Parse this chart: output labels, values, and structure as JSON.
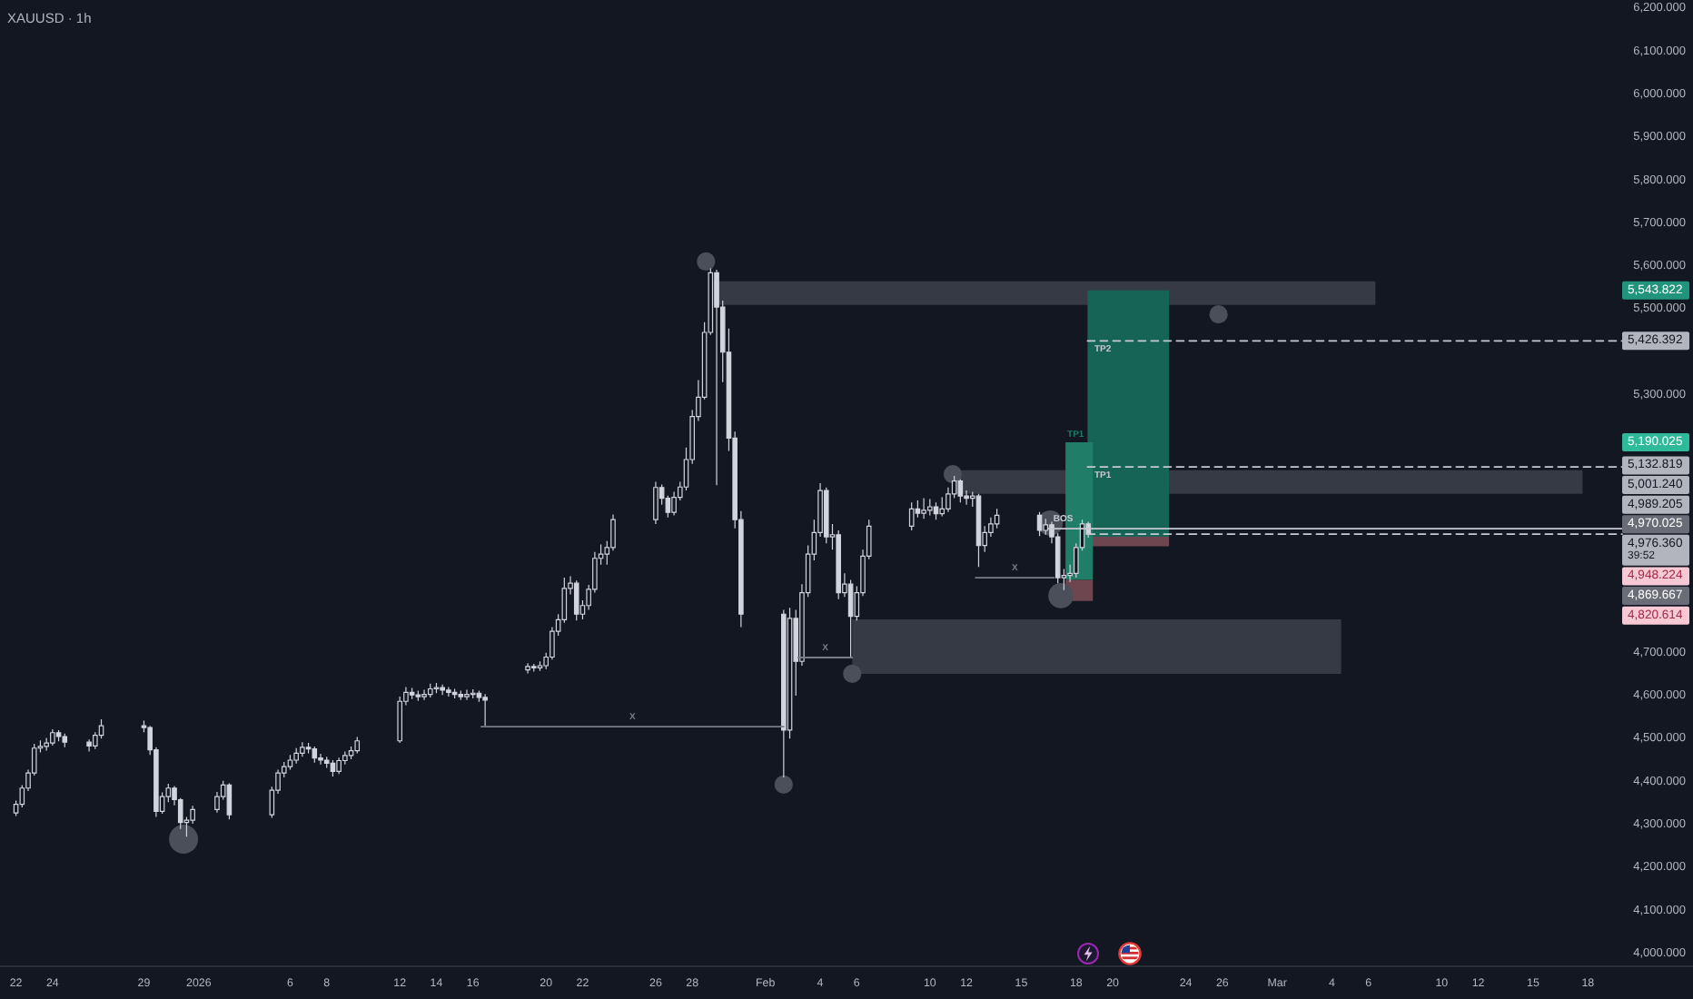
{
  "chart_data": {
    "type": "candlestick",
    "title": "XAUUSD · 1h",
    "xlim": [
      "2025-12-21T03:00",
      "2026-03-23T18:00"
    ],
    "ylim": [
      3970,
      6220
    ],
    "xticks": [
      {
        "value": "2025-12-22",
        "label": "22"
      },
      {
        "value": "2025-12-24",
        "label": "24"
      },
      {
        "value": "2025-12-29",
        "label": "29"
      },
      {
        "value": "2026",
        "label": "2026"
      },
      {
        "value": "2026-01-06",
        "label": "6"
      },
      {
        "value": "2026-01-08",
        "label": "8"
      },
      {
        "value": "2026-01-12",
        "label": "12"
      },
      {
        "value": "2026-01-14",
        "label": "14"
      },
      {
        "value": "2026-01-16",
        "label": "16"
      },
      {
        "value": "2026-01-20",
        "label": "20"
      },
      {
        "value": "2026-01-22",
        "label": "22"
      },
      {
        "value": "2026-01-26",
        "label": "26"
      },
      {
        "value": "2026-01-28",
        "label": "28"
      },
      {
        "value": "2026-02",
        "label": "Feb"
      },
      {
        "value": "2026-02-04",
        "label": "4"
      },
      {
        "value": "2026-02-06",
        "label": "6"
      },
      {
        "value": "2026-02-10",
        "label": "10"
      },
      {
        "value": "2026-02-12",
        "label": "12"
      },
      {
        "value": "2026-02-15",
        "label": "15"
      },
      {
        "value": "2026-02-18",
        "label": "18"
      },
      {
        "value": "2026-02-20",
        "label": "20"
      },
      {
        "value": "2026-02-24",
        "label": "24"
      },
      {
        "value": "2026-02-26",
        "label": "26"
      },
      {
        "value": "2026-03",
        "label": "Mar"
      },
      {
        "value": "2026-03-04",
        "label": "4"
      },
      {
        "value": "2026-03-06",
        "label": "6"
      },
      {
        "value": "2026-03-10",
        "label": "10"
      },
      {
        "value": "2026-03-12",
        "label": "12"
      },
      {
        "value": "2026-03-15",
        "label": "15"
      },
      {
        "value": "2026-03-18",
        "label": "18"
      }
    ],
    "yticks": [
      {
        "value": 4000,
        "label": "4,000.000"
      },
      {
        "value": 4100,
        "label": "4,100.000"
      },
      {
        "value": 4200,
        "label": "4,200.000"
      },
      {
        "value": 4300,
        "label": "4,300.000"
      },
      {
        "value": 4400,
        "label": "4,400.000"
      },
      {
        "value": 4500,
        "label": "4,500.000"
      },
      {
        "value": 4600,
        "label": "4,600.000"
      },
      {
        "value": 4700,
        "label": "4,700.000"
      },
      {
        "value": 5300,
        "label": "5,300.000"
      },
      {
        "value": 5500,
        "label": "5,500.000"
      },
      {
        "value": 5600,
        "label": "5,600.000"
      },
      {
        "value": 5700,
        "label": "5,700.000"
      },
      {
        "value": 5800,
        "label": "5,800.000"
      },
      {
        "value": 5900,
        "label": "5,900.000"
      },
      {
        "value": 6000,
        "label": "6,000.000"
      },
      {
        "value": 6100,
        "label": "6,100.000"
      },
      {
        "value": 6200,
        "label": "6,200.000"
      }
    ],
    "series": [
      {
        "type": "area",
        "color": "#363a45",
        "x": [
          "2026-01-29T04:00",
          "2026-03-06T09:00"
        ],
        "values": [
          null,
          null
        ],
        "lower": [
          5510,
          5510
        ],
        "upper": [
          5565,
          5565
        ]
      },
      {
        "type": "area",
        "color": "#363a45",
        "x": [
          "2026-02-11T06:00",
          "2026-03-17T17:00"
        ],
        "values": [
          null,
          null
        ],
        "lower": [
          5070,
          5070
        ],
        "upper": [
          5125,
          5125
        ]
      },
      {
        "type": "area",
        "color": "#363a45",
        "x": [
          "2026-02-05T18:00",
          "2026-03-04T12:00"
        ],
        "values": [
          null,
          null
        ],
        "lower": [
          4651,
          4651
        ],
        "upper": [
          4778,
          4778
        ]
      },
      {
        "type": "area",
        "color": "#166455",
        "x": [
          "2026-02-18T15:00",
          "2026-02-23T02:00"
        ],
        "values": [
          null,
          null
        ],
        "lower": [
          4970.025,
          4970.025
        ],
        "upper": [
          5543.822,
          5543.822
        ]
      },
      {
        "type": "area",
        "color": "#6e4650",
        "x": [
          "2026-02-18T15:00",
          "2026-02-23T02:00"
        ],
        "values": [
          null,
          null
        ],
        "lower": [
          4948.224,
          4948.224
        ],
        "upper": [
          4970.025,
          4970.025
        ]
      },
      {
        "type": "area",
        "name": "TP1",
        "color": "#1f7d68",
        "x": [
          "2026-02-17T10:00",
          "2026-02-18T22:00"
        ],
        "values": [
          null,
          null
        ],
        "lower": [
          4869.667,
          4869.667
        ],
        "upper": [
          5190.025,
          5190.025
        ]
      },
      {
        "type": "area",
        "color": "#6e4650",
        "x": [
          "2026-02-17T10:00",
          "2026-02-18T22:00"
        ],
        "values": [
          null,
          null
        ],
        "lower": [
          4820.614,
          4820.614
        ],
        "upper": [
          4869.667,
          4869.667
        ]
      },
      {
        "type": "bubble",
        "color": "#4b4f5a",
        "x": [
          "2025-12-31T04:00",
          "2026-01-28T18:00",
          "2026-02-02T00:00",
          "2026-02-05T18:00",
          "2026-02-11T06:00",
          "2026-02-16T14:00",
          "2026-02-17T04:00",
          "2026-02-25T19:00"
        ],
        "values": [
          4266,
          5611,
          4393,
          4651,
          5116,
          5002,
          4833,
          5488
        ],
        "sizes": [
          1,
          0.4,
          0.4,
          0.4,
          0.4,
          0.75,
          0.75,
          0.4
        ]
      },
      {
        "color": "#d1d4dc",
        "x": [
          "2025-12-22T00:00",
          "2025-12-22T08:00",
          "2025-12-22T16:00",
          "2025-12-23T00:00",
          "2025-12-23T08:00",
          "2025-12-23T16:00",
          "2025-12-24T00:00",
          "2025-12-24T08:00",
          "2025-12-24T16:00",
          "2025-12-26T00:00",
          "2025-12-26T08:00",
          "2025-12-26T16:00",
          "2025-12-29T00:00",
          "2025-12-29T08:00",
          "2025-12-29T16:00",
          "2025-12-30T00:00",
          "2025-12-30T08:00",
          "2025-12-30T16:00",
          "2025-12-31T00:00",
          "2025-12-31T08:00",
          "2025-12-31T16:00",
          "2026-01-02T00:00",
          "2026-01-02T08:00",
          "2026-01-02T16:00",
          "2026-01-05T00:00",
          "2026-01-05T08:00",
          "2026-01-05T16:00",
          "2026-01-06T00:00",
          "2026-01-06T08:00",
          "2026-01-06T16:00",
          "2026-01-07T00:00",
          "2026-01-07T08:00",
          "2026-01-07T16:00",
          "2026-01-08T00:00",
          "2026-01-08T08:00",
          "2026-01-08T16:00",
          "2026-01-09T00:00",
          "2026-01-09T08:00",
          "2026-01-09T16:00",
          "2026-01-12T00:00",
          "2026-01-12T08:00",
          "2026-01-12T16:00",
          "2026-01-13T00:00",
          "2026-01-13T08:00",
          "2026-01-13T16:00",
          "2026-01-14T00:00",
          "2026-01-14T08:00",
          "2026-01-14T16:00",
          "2026-01-15T00:00",
          "2026-01-15T08:00",
          "2026-01-15T16:00",
          "2026-01-16T00:00",
          "2026-01-16T08:00",
          "2026-01-16T16:00",
          "2026-01-19T00:00",
          "2026-01-19T08:00",
          "2026-01-19T16:00",
          "2026-01-20T00:00",
          "2026-01-20T08:00",
          "2026-01-20T16:00",
          "2026-01-21T00:00",
          "2026-01-21T08:00",
          "2026-01-21T16:00",
          "2026-01-22T00:00",
          "2026-01-22T08:00",
          "2026-01-22T16:00",
          "2026-01-23T00:00",
          "2026-01-23T08:00",
          "2026-01-23T16:00",
          "2026-01-26T00:00",
          "2026-01-26T08:00",
          "2026-01-26T16:00",
          "2026-01-27T00:00",
          "2026-01-27T08:00",
          "2026-01-27T16:00",
          "2026-01-28T00:00",
          "2026-01-28T08:00",
          "2026-01-28T16:00",
          "2026-01-29T00:00",
          "2026-01-29T08:00",
          "2026-01-29T16:00",
          "2026-01-30T00:00",
          "2026-01-30T08:00",
          "2026-01-30T16:00",
          "2026-02-02T00:00",
          "2026-02-02T08:00",
          "2026-02-02T16:00",
          "2026-02-03T00:00",
          "2026-02-03T08:00",
          "2026-02-03T16:00",
          "2026-02-04T00:00",
          "2026-02-04T08:00",
          "2026-02-04T16:00",
          "2026-02-05T00:00",
          "2026-02-05T08:00",
          "2026-02-05T16:00",
          "2026-02-06T00:00",
          "2026-02-06T08:00",
          "2026-02-06T16:00",
          "2026-02-09T00:00",
          "2026-02-09T08:00",
          "2026-02-09T16:00",
          "2026-02-10T00:00",
          "2026-02-10T08:00",
          "2026-02-10T16:00",
          "2026-02-11T00:00",
          "2026-02-11T08:00",
          "2026-02-11T16:00",
          "2026-02-12T00:00",
          "2026-02-12T08:00",
          "2026-02-12T16:00",
          "2026-02-13T00:00",
          "2026-02-13T08:00",
          "2026-02-13T16:00",
          "2026-02-16T00:00",
          "2026-02-16T08:00",
          "2026-02-16T16:00",
          "2026-02-17T00:00",
          "2026-02-17T08:00",
          "2026-02-17T16:00",
          "2026-02-18T00:00",
          "2026-02-18T08:00",
          "2026-02-18T16:00"
        ],
        "ohlc": [
          [
            4327,
            4356,
            4320,
            4347
          ],
          [
            4347,
            4392,
            4340,
            4385
          ],
          [
            4385,
            4428,
            4378,
            4420
          ],
          [
            4420,
            4488,
            4414,
            4478
          ],
          [
            4478,
            4496,
            4468,
            4482
          ],
          [
            4482,
            4502,
            4472,
            4490
          ],
          [
            4490,
            4522,
            4484,
            4514
          ],
          [
            4514,
            4520,
            4494,
            4505
          ],
          [
            4505,
            4512,
            4480,
            4492
          ],
          [
            4492,
            4498,
            4470,
            4483
          ],
          [
            4483,
            4515,
            4476,
            4508
          ],
          [
            4508,
            4545,
            4500,
            4530
          ],
          [
            4530,
            4542,
            4515,
            4526
          ],
          [
            4526,
            4530,
            4462,
            4474
          ],
          [
            4474,
            4480,
            4318,
            4331
          ],
          [
            4331,
            4375,
            4325,
            4365
          ],
          [
            4365,
            4395,
            4352,
            4385
          ],
          [
            4385,
            4390,
            4345,
            4358
          ],
          [
            4358,
            4362,
            4290,
            4305
          ],
          [
            4305,
            4318,
            4272,
            4310
          ],
          [
            4310,
            4344,
            4302,
            4335
          ],
          [
            4335,
            4376,
            4328,
            4365
          ],
          [
            4365,
            4402,
            4358,
            4392
          ],
          [
            4392,
            4396,
            4312,
            4323
          ],
          [
            4323,
            4388,
            4316,
            4380
          ],
          [
            4380,
            4428,
            4372,
            4420
          ],
          [
            4420,
            4446,
            4410,
            4435
          ],
          [
            4435,
            4462,
            4428,
            4450
          ],
          [
            4450,
            4478,
            4442,
            4466
          ],
          [
            4466,
            4492,
            4458,
            4480
          ],
          [
            4480,
            4490,
            4466,
            4476
          ],
          [
            4476,
            4482,
            4444,
            4455
          ],
          [
            4455,
            4465,
            4440,
            4450
          ],
          [
            4450,
            4458,
            4432,
            4443
          ],
          [
            4443,
            4450,
            4412,
            4424
          ],
          [
            4424,
            4456,
            4418,
            4449
          ],
          [
            4449,
            4470,
            4440,
            4461
          ],
          [
            4461,
            4482,
            4452,
            4472
          ],
          [
            4472,
            4504,
            4466,
            4495
          ],
          [
            4495,
            4598,
            4490,
            4587
          ],
          [
            4587,
            4620,
            4578,
            4608
          ],
          [
            4608,
            4618,
            4592,
            4602
          ],
          [
            4602,
            4612,
            4588,
            4598
          ],
          [
            4598,
            4614,
            4590,
            4603
          ],
          [
            4603,
            4628,
            4596,
            4616
          ],
          [
            4616,
            4630,
            4606,
            4619
          ],
          [
            4619,
            4626,
            4602,
            4613
          ],
          [
            4613,
            4620,
            4598,
            4608
          ],
          [
            4608,
            4616,
            4594,
            4603
          ],
          [
            4603,
            4612,
            4590,
            4598
          ],
          [
            4598,
            4614,
            4590,
            4603
          ],
          [
            4603,
            4615,
            4594,
            4606
          ],
          [
            4606,
            4612,
            4586,
            4596
          ],
          [
            4596,
            4604,
            4530,
            4590
          ],
          [
            4660,
            4676,
            4652,
            4668
          ],
          [
            4668,
            4674,
            4656,
            4665
          ],
          [
            4665,
            4680,
            4658,
            4670
          ],
          [
            4670,
            4700,
            4662,
            4690
          ],
          [
            4690,
            4760,
            4684,
            4750
          ],
          [
            4750,
            4790,
            4740,
            4777
          ],
          [
            4777,
            4875,
            4770,
            4850
          ],
          [
            4850,
            4878,
            4836,
            4862
          ],
          [
            4862,
            4868,
            4775,
            4790
          ],
          [
            4790,
            4822,
            4778,
            4810
          ],
          [
            4810,
            4858,
            4800,
            4848
          ],
          [
            4848,
            4935,
            4840,
            4920
          ],
          [
            4920,
            4952,
            4905,
            4930
          ],
          [
            4930,
            4960,
            4905,
            4945
          ],
          [
            4945,
            5022,
            4938,
            5010
          ],
          [
            5010,
            5098,
            5000,
            5085
          ],
          [
            5085,
            5092,
            5045,
            5060
          ],
          [
            5060,
            5066,
            5015,
            5027
          ],
          [
            5027,
            5075,
            5020,
            5062
          ],
          [
            5062,
            5098,
            5055,
            5086
          ],
          [
            5086,
            5178,
            5078,
            5150
          ],
          [
            5150,
            5265,
            5140,
            5250
          ],
          [
            5250,
            5335,
            5240,
            5295
          ],
          [
            5295,
            5470,
            5290,
            5446
          ],
          [
            5446,
            5595,
            5440,
            5585
          ],
          [
            5585,
            5592,
            5090,
            5505
          ],
          [
            5505,
            5520,
            5330,
            5400
          ],
          [
            5400,
            5455,
            5170,
            5200
          ],
          [
            5200,
            5215,
            4990,
            5010
          ],
          [
            5010,
            5030,
            4760,
            4790
          ],
          [
            4790,
            4800,
            4410,
            4520
          ],
          [
            4520,
            4805,
            4500,
            4780
          ],
          [
            4780,
            4800,
            4600,
            4680
          ],
          [
            4680,
            4860,
            4670,
            4840
          ],
          [
            4840,
            4950,
            4830,
            4930
          ],
          [
            4930,
            5010,
            4915,
            4980
          ],
          [
            4980,
            5095,
            4970,
            5078
          ],
          [
            5078,
            5085,
            4955,
            4970
          ],
          [
            4970,
            5000,
            4940,
            4975
          ],
          [
            4975,
            4985,
            4825,
            4840
          ],
          [
            4840,
            4885,
            4830,
            4860
          ],
          [
            4860,
            4870,
            4690,
            4785
          ],
          [
            4785,
            4855,
            4775,
            4840
          ],
          [
            4840,
            4940,
            4832,
            4925
          ],
          [
            4925,
            5010,
            4918,
            4995
          ],
          [
            4995,
            5050,
            4985,
            5035
          ],
          [
            5035,
            5055,
            5015,
            5025
          ],
          [
            5025,
            5060,
            5012,
            5032
          ],
          [
            5032,
            5058,
            5020,
            5040
          ],
          [
            5040,
            5050,
            5010,
            5024
          ],
          [
            5024,
            5062,
            5018,
            5035
          ],
          [
            5035,
            5085,
            5028,
            5070
          ],
          [
            5070,
            5112,
            5060,
            5100
          ],
          [
            5100,
            5104,
            5050,
            5065
          ],
          [
            5065,
            5078,
            5045,
            5060
          ],
          [
            5060,
            5075,
            5040,
            5065
          ],
          [
            5065,
            5070,
            4900,
            4950
          ],
          [
            4950,
            4995,
            4935,
            4980
          ],
          [
            4980,
            5015,
            4970,
            5000
          ],
          [
            5000,
            5035,
            4990,
            5020
          ],
          [
            5020,
            5028,
            4972,
            4985
          ],
          [
            4985,
            5012,
            4975,
            4998
          ],
          [
            4998,
            5005,
            4955,
            4970
          ],
          [
            4970,
            4978,
            4862,
            4875
          ],
          [
            4875,
            4895,
            4846,
            4880
          ],
          [
            4880,
            4905,
            4865,
            4885
          ],
          [
            4885,
            4955,
            4875,
            4945
          ],
          [
            4945,
            5010,
            4938,
            5000
          ],
          [
            5000,
            5005,
            4968,
            4976.36
          ]
        ]
      },
      {
        "type": "line",
        "name": "X",
        "color": "#787b86",
        "x": [
          "2026-01-16T11:00",
          "2026-02-02T00:00"
        ],
        "values": [
          4528,
          4528
        ],
        "line_style": "solid"
      },
      {
        "type": "line",
        "name": "X",
        "color": "#787b86",
        "x": [
          "2026-02-02T19:00",
          "2026-02-05T18:00"
        ],
        "values": [
          4689,
          4689
        ],
        "line_style": "solid"
      },
      {
        "type": "line",
        "name": "X",
        "color": "#787b86",
        "x": [
          "2026-02-12T12:00",
          "2026-02-16T19:00"
        ],
        "values": [
          4875,
          4875
        ],
        "line_style": "solid"
      },
      {
        "type": "line",
        "name": "TP2",
        "color": "#c8cad1",
        "x": [
          "2026-02-18T15:00",
          "2026-03-19T21:00"
        ],
        "values": [
          5426.392,
          5426.392
        ],
        "line_style": "dashed"
      },
      {
        "type": "line",
        "name": "TP1",
        "color": "#c8cad1",
        "x": [
          "2026-02-18T15:00",
          "2026-03-19T21:00"
        ],
        "values": [
          5132.819,
          5132.819
        ],
        "line_style": "dashed"
      },
      {
        "type": "line",
        "name": "BOS",
        "color": "#c8cad1",
        "x": [
          "2026-02-16T11:00",
          "2026-03-19T21:00"
        ],
        "values": [
          4989.205,
          4989.205
        ],
        "line_style": "solid"
      },
      {
        "type": "line",
        "color": "#c8cad1",
        "x": [
          "2026-02-18T15:00",
          "2026-03-19T21:00"
        ],
        "values": [
          4976.36,
          4976.36
        ],
        "line_style": "dashed"
      }
    ],
    "annotations": [
      "5,543.822",
      "5,190.025",
      "5,001.240",
      "4,970.025",
      "4,948.224",
      "4,869.667",
      "4,820.614",
      {
        "text": "5,426.392",
        "x": "2026-03-19T21:00",
        "y": 5426.392
      },
      {
        "text": "5,132.819",
        "x": "2026-03-19T21:00",
        "y": 5132.819
      },
      {
        "text": "4,989.205",
        "x": "2026-03-19T21:00",
        "y": 4989.205
      },
      {
        "text": "4,976.360",
        "x": "2026-03-19T21:00",
        "y": 4976.36
      },
      "39:52"
    ]
  }
}
